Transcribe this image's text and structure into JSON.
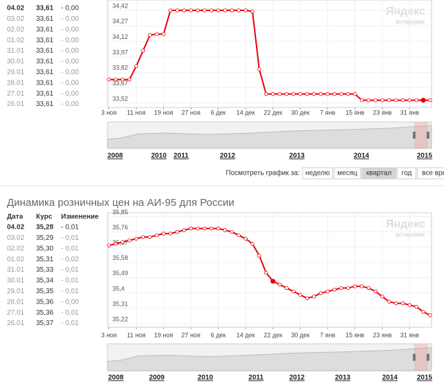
{
  "panels": [
    {
      "table": {
        "rows": [
          [
            "04.02",
            "33,61",
            "- 0,00"
          ],
          [
            "03.02",
            "33,61",
            "- 0,00"
          ],
          [
            "02.02",
            "33,61",
            "- 0,00"
          ],
          [
            "01.02",
            "33,61",
            "- 0,00"
          ],
          [
            "31.01",
            "33,61",
            "- 0,00"
          ],
          [
            "30.01",
            "33,61",
            "- 0,00"
          ],
          [
            "29.01",
            "33,61",
            "- 0,00"
          ],
          [
            "28.01",
            "33,61",
            "- 0,00"
          ],
          [
            "27.01",
            "33,61",
            "- 0,00"
          ],
          [
            "26.01",
            "33,61",
            "- 0,00"
          ]
        ]
      },
      "chart": {
        "type": "line",
        "color": "#e8000b",
        "ylim": [
          33.48,
          34.5
        ],
        "yticks": [
          {
            "value": 33.52,
            "label": "33,52"
          },
          {
            "value": 33.67,
            "label": "33,67"
          },
          {
            "value": 33.82,
            "label": "33,82"
          },
          {
            "value": 33.97,
            "label": "33,97"
          },
          {
            "value": 34.12,
            "label": "34,12"
          },
          {
            "value": 34.27,
            "label": "34,27"
          },
          {
            "value": 34.42,
            "label": "34,42"
          }
        ],
        "xticks": [
          "3 ноя",
          "11 ноя",
          "19 ноя",
          "27 ноя",
          "6 дек",
          "14 дек",
          "22 дек",
          "30 дек",
          "7 янв",
          "15 янв",
          "23 янв",
          "31 янв"
        ],
        "values": [
          33.75,
          33.75,
          33.75,
          33.75,
          33.88,
          34.03,
          34.18,
          34.19,
          34.19,
          34.42,
          34.42,
          34.42,
          34.42,
          34.42,
          34.42,
          34.42,
          34.42,
          34.42,
          34.42,
          34.42,
          34.42,
          34.41,
          33.85,
          33.61,
          33.61,
          33.61,
          33.61,
          33.61,
          33.61,
          33.61,
          33.61,
          33.61,
          33.61,
          33.61,
          33.61,
          33.61,
          33.61,
          33.55,
          33.55,
          33.55,
          33.55,
          33.55,
          33.55,
          33.55,
          33.55,
          33.55,
          33.55,
          33.55
        ],
        "highlight": 46,
        "watermark": [
          "Яндекс",
          "котировки"
        ]
      },
      "navigator": {
        "years": [
          "2008",
          "2010",
          "2011",
          "2012",
          "2013",
          "2014",
          "2015"
        ]
      },
      "period": {
        "label": "Посмотреть график за:",
        "buttons": [
          "неделю",
          "месяц",
          "квартал",
          "год",
          "все время"
        ],
        "active": 2
      }
    },
    {
      "title": "Динамика розничных цен на АИ-95 для России",
      "table": {
        "header": [
          "Дата",
          "Курс",
          "Изменение"
        ],
        "rows": [
          [
            "04.02",
            "35,28",
            "- 0,01"
          ],
          [
            "03.02",
            "35,29",
            "- 0,01"
          ],
          [
            "02.02",
            "35,30",
            "- 0,01"
          ],
          [
            "01.02",
            "35,31",
            "- 0,02"
          ],
          [
            "31.01",
            "35,33",
            "- 0,01"
          ],
          [
            "30.01",
            "35,34",
            "- 0,01"
          ],
          [
            "29.01",
            "35,35",
            "- 0,01"
          ],
          [
            "28.01",
            "35,36",
            "- 0,00"
          ],
          [
            "27.01",
            "35,36",
            "- 0,01"
          ],
          [
            "26.01",
            "35,37",
            "- 0,01"
          ]
        ]
      },
      "chart": {
        "type": "line",
        "color": "#e8000b",
        "ylim": [
          35.2,
          35.86
        ],
        "yticks": [
          {
            "value": 35.22,
            "label": "35,22"
          },
          {
            "value": 35.31,
            "label": "35,31"
          },
          {
            "value": 35.4,
            "label": "35,4"
          },
          {
            "value": 35.49,
            "label": "35,49"
          },
          {
            "value": 35.58,
            "label": "35,58"
          },
          {
            "value": 35.67,
            "label": "35,67"
          },
          {
            "value": 35.76,
            "label": "35,76"
          },
          {
            "value": 35.85,
            "label": "35,85"
          }
        ],
        "xticks": [
          "3 ноя",
          "11 ноя",
          "19 ноя",
          "27 ноя",
          "6 дек",
          "14 дек",
          "22 дек",
          "30 дек",
          "7 янв",
          "15 янв",
          "23 янв",
          "31 янв"
        ],
        "values": [
          35.68,
          35.69,
          35.7,
          35.71,
          35.72,
          35.73,
          35.73,
          35.74,
          35.75,
          35.75,
          35.76,
          35.77,
          35.78,
          35.78,
          35.78,
          35.78,
          35.78,
          35.77,
          35.76,
          35.74,
          35.72,
          35.69,
          35.62,
          35.52,
          35.47,
          35.45,
          35.43,
          35.41,
          35.39,
          35.37,
          35.38,
          35.4,
          35.41,
          35.42,
          35.43,
          35.43,
          35.44,
          35.44,
          35.43,
          35.41,
          35.38,
          35.35,
          35.34,
          35.34,
          35.33,
          35.32,
          35.29,
          35.27
        ],
        "highlight": 24,
        "watermark": [
          "Яндекс",
          "котировки"
        ]
      },
      "navigator": {
        "years": [
          "2008",
          "2009",
          "2010",
          "2011",
          "2012",
          "2013",
          "2014",
          "2015"
        ]
      }
    }
  ]
}
